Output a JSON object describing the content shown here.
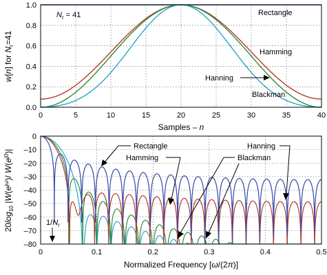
{
  "colors": {
    "rectangle": "#3545a8",
    "hamming": "#b23a2a",
    "hanning": "#2d8a3e",
    "blackman": "#2aa6c4",
    "background": "#ffffff",
    "grid": "#555555"
  },
  "chart_data": [
    {
      "type": "line",
      "xlabel": "Samples – n",
      "ylabel": "w[n] for N=41",
      "annotation": "N = 41",
      "x": {
        "min": 0,
        "max": 40
      },
      "xlim": [
        0,
        40
      ],
      "ylim": [
        0,
        1.0
      ],
      "xticks": [
        "0",
        "5",
        "10",
        "15",
        "20",
        "25",
        "30",
        "35",
        "40"
      ],
      "yticks": [
        "0.0",
        "0.2",
        "0.4",
        "0.6",
        "0.8",
        "1.0"
      ],
      "grid": true,
      "series": [
        {
          "name": "Rectangle",
          "key": "rectangle"
        },
        {
          "name": "Hamming",
          "key": "hamming"
        },
        {
          "name": "Hanning",
          "key": "hanning"
        },
        {
          "name": "Blackman",
          "key": "blackman"
        }
      ]
    },
    {
      "type": "line",
      "xlabel": "Normalized Frequency [ω/(2π)]",
      "ylabel": "20log10 |W(e^jω)/ W(e^j0)|",
      "annotation": "1/N",
      "xlim": [
        0,
        0.5
      ],
      "ylim": [
        -80,
        0
      ],
      "xticks": [
        "0",
        "0.1",
        "0.2",
        "0.3",
        "0.4",
        "0.5"
      ],
      "yticks": [
        "0",
        "–10",
        "–20",
        "–30",
        "–40",
        "–50",
        "–60",
        "–70",
        "–80"
      ],
      "grid": true,
      "series": [
        {
          "name": "Rectangle",
          "key": "rectangle"
        },
        {
          "name": "Hamming",
          "key": "hamming"
        },
        {
          "name": "Hanning",
          "key": "hanning"
        },
        {
          "name": "Blackman",
          "key": "blackman"
        }
      ]
    }
  ]
}
